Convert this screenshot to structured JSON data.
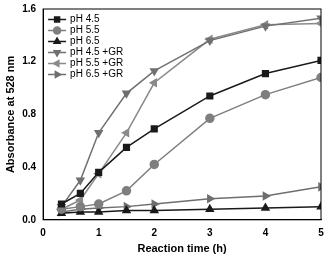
{
  "chart_data": {
    "type": "line",
    "x_label": "Reaction time (h)",
    "y_label": "Absorbance at 528 nm",
    "xlim": [
      0,
      5
    ],
    "xticks": [
      0,
      1,
      2,
      3,
      4,
      5
    ],
    "ylim": [
      0,
      1.6
    ],
    "yticks": [
      {
        "value": 0,
        "label": "0.0"
      },
      0.4,
      0.8,
      1.2,
      1.6
    ],
    "grid": false,
    "legend": "upper left",
    "x": [
      0.33,
      0.67,
      1,
      1.5,
      2,
      3,
      4,
      5
    ],
    "series": [
      {
        "name": "pH 4.5",
        "color": "#1a1a1a",
        "marker": "square",
        "values": [
          0.12,
          0.2,
          0.36,
          0.55,
          0.69,
          0.94,
          1.11,
          1.21
        ]
      },
      {
        "name": "pH 5.5",
        "color": "#7f7f7f",
        "marker": "circle",
        "values": [
          0.08,
          0.1,
          0.12,
          0.22,
          0.42,
          0.77,
          0.95,
          1.08
        ]
      },
      {
        "name": "pH 6.5",
        "color": "#1a1a1a",
        "marker": "triangle-up",
        "values": [
          0.05,
          0.06,
          0.06,
          0.07,
          0.07,
          0.08,
          0.09,
          0.1
        ]
      },
      {
        "name": "pH 4.5 +GR",
        "color": "#707070",
        "marker": "triangle-down",
        "values": [
          0.1,
          0.3,
          0.66,
          0.96,
          1.13,
          1.36,
          1.47,
          1.53
        ]
      },
      {
        "name": "pH 5.5 +GR",
        "color": "#8a8a8a",
        "marker": "triangle-left",
        "values": [
          0.08,
          0.15,
          0.35,
          0.66,
          1.04,
          1.37,
          1.48,
          1.49
        ]
      },
      {
        "name": "pH 6.5 +GR",
        "color": "#6e6e6e",
        "marker": "triangle-right",
        "values": [
          0.06,
          0.08,
          0.09,
          0.1,
          0.12,
          0.16,
          0.18,
          0.25
        ]
      }
    ]
  }
}
